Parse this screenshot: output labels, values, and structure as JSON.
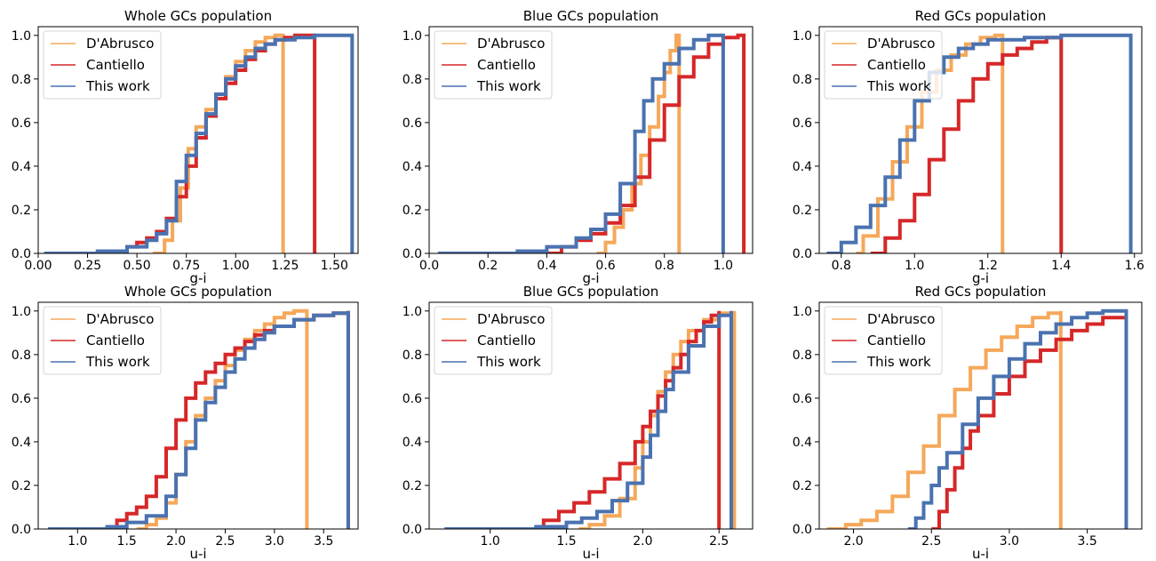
{
  "colors": {
    "dabrusco": "#f5a85a",
    "cantiello": "#d62728",
    "this_work": "#4a72b0"
  },
  "chart_data": [
    {
      "type": "line",
      "title": "Whole GCs population",
      "xlabel": "g-i",
      "ylabel": "",
      "xlim": [
        0.0,
        1.62
      ],
      "ylim": [
        0.0,
        1.04
      ],
      "xticks": [
        0.0,
        0.25,
        0.5,
        0.75,
        1.0,
        1.25,
        1.5
      ],
      "xtick_labels": [
        "0.00",
        "0.25",
        "0.50",
        "0.75",
        "1.00",
        "1.25",
        "1.50"
      ],
      "yticks": [
        0.0,
        0.2,
        0.4,
        0.6,
        0.8,
        1.0
      ],
      "ytick_labels": [
        "0.0",
        "0.2",
        "0.4",
        "0.6",
        "0.8",
        "1.0"
      ],
      "legend": {
        "position": "top-left",
        "entries": [
          "D'Abrusco",
          "Cantiello",
          "This work"
        ]
      },
      "grid": false,
      "series": [
        {
          "name": "D'Abrusco",
          "color": "#f5a85a",
          "line_width": 4,
          "x": [
            0.58,
            0.64,
            0.68,
            0.72,
            0.76,
            0.8,
            0.85,
            0.9,
            0.95,
            1.0,
            1.05,
            1.1,
            1.15,
            1.2,
            1.24
          ],
          "y": [
            0.0,
            0.06,
            0.15,
            0.3,
            0.48,
            0.58,
            0.66,
            0.73,
            0.81,
            0.88,
            0.93,
            0.97,
            0.99,
            1.0,
            1.0
          ]
        },
        {
          "name": "Cantiello",
          "color": "#d62728",
          "line_width": 4,
          "x": [
            0.38,
            0.45,
            0.5,
            0.55,
            0.6,
            0.65,
            0.7,
            0.75,
            0.8,
            0.85,
            0.9,
            0.95,
            1.0,
            1.05,
            1.1,
            1.15,
            1.2,
            1.25,
            1.3,
            1.35,
            1.4
          ],
          "y": [
            0.0,
            0.03,
            0.05,
            0.07,
            0.1,
            0.16,
            0.26,
            0.4,
            0.53,
            0.63,
            0.71,
            0.78,
            0.84,
            0.89,
            0.93,
            0.96,
            0.98,
            0.99,
            1.0,
            1.0,
            1.0
          ]
        },
        {
          "name": "This work",
          "color": "#4a72b0",
          "line_width": 4,
          "x": [
            0.03,
            0.3,
            0.45,
            0.55,
            0.6,
            0.65,
            0.7,
            0.75,
            0.8,
            0.85,
            0.9,
            0.95,
            1.0,
            1.05,
            1.1,
            1.15,
            1.2,
            1.3,
            1.4,
            1.5,
            1.59
          ],
          "y": [
            0.0,
            0.01,
            0.03,
            0.06,
            0.09,
            0.15,
            0.33,
            0.45,
            0.55,
            0.64,
            0.73,
            0.8,
            0.86,
            0.9,
            0.94,
            0.96,
            0.98,
            0.99,
            1.0,
            1.0,
            1.0
          ]
        }
      ]
    },
    {
      "type": "line",
      "title": "Blue GCs population",
      "xlabel": "g-i",
      "ylabel": "",
      "xlim": [
        0.0,
        1.1
      ],
      "ylim": [
        0.0,
        1.04
      ],
      "xticks": [
        0.0,
        0.2,
        0.4,
        0.6,
        0.8,
        1.0
      ],
      "xtick_labels": [
        "0.0",
        "0.2",
        "0.4",
        "0.6",
        "0.8",
        "1.0"
      ],
      "yticks": [
        0.0,
        0.2,
        0.4,
        0.6,
        0.8,
        1.0
      ],
      "ytick_labels": [
        "0.0",
        "0.2",
        "0.4",
        "0.6",
        "0.8",
        "1.0"
      ],
      "legend": {
        "position": "top-left",
        "entries": [
          "D'Abrusco",
          "Cantiello",
          "This work"
        ]
      },
      "grid": false,
      "series": [
        {
          "name": "D'Abrusco",
          "color": "#f5a85a",
          "line_width": 4,
          "x": [
            0.57,
            0.6,
            0.63,
            0.66,
            0.69,
            0.72,
            0.75,
            0.78,
            0.8,
            0.82,
            0.84,
            0.85
          ],
          "y": [
            0.0,
            0.05,
            0.12,
            0.2,
            0.32,
            0.45,
            0.58,
            0.72,
            0.83,
            0.93,
            1.0,
            1.0
          ]
        },
        {
          "name": "Cantiello",
          "color": "#d62728",
          "line_width": 4,
          "x": [
            0.4,
            0.45,
            0.5,
            0.55,
            0.6,
            0.65,
            0.7,
            0.75,
            0.8,
            0.85,
            0.9,
            0.95,
            1.0,
            1.05,
            1.07
          ],
          "y": [
            0.0,
            0.03,
            0.06,
            0.09,
            0.14,
            0.22,
            0.35,
            0.52,
            0.68,
            0.81,
            0.9,
            0.96,
            0.99,
            1.0,
            1.0
          ]
        },
        {
          "name": "This work",
          "color": "#4a72b0",
          "line_width": 4,
          "x": [
            0.03,
            0.3,
            0.4,
            0.5,
            0.55,
            0.6,
            0.65,
            0.7,
            0.73,
            0.76,
            0.8,
            0.85,
            0.9,
            0.95,
            1.0
          ],
          "y": [
            0.0,
            0.01,
            0.03,
            0.07,
            0.11,
            0.18,
            0.32,
            0.56,
            0.7,
            0.8,
            0.87,
            0.94,
            0.98,
            1.0,
            1.0
          ]
        }
      ]
    },
    {
      "type": "line",
      "title": "Red GCs population",
      "xlabel": "g-i",
      "ylabel": "",
      "xlim": [
        0.74,
        1.62
      ],
      "ylim": [
        0.0,
        1.04
      ],
      "xticks": [
        0.8,
        1.0,
        1.2,
        1.4,
        1.6
      ],
      "xtick_labels": [
        "0.8",
        "1.0",
        "1.2",
        "1.4",
        "1.6"
      ],
      "yticks": [
        0.0,
        0.2,
        0.4,
        0.6,
        0.8,
        1.0
      ],
      "ytick_labels": [
        "0.0",
        "0.2",
        "0.4",
        "0.6",
        "0.8",
        "1.0"
      ],
      "legend": {
        "position": "top-left",
        "entries": [
          "D'Abrusco",
          "Cantiello",
          "This work"
        ]
      },
      "grid": false,
      "series": [
        {
          "name": "D'Abrusco",
          "color": "#f5a85a",
          "line_width": 4,
          "x": [
            0.84,
            0.86,
            0.9,
            0.94,
            0.98,
            1.02,
            1.06,
            1.1,
            1.14,
            1.18,
            1.22,
            1.24
          ],
          "y": [
            0.0,
            0.08,
            0.25,
            0.42,
            0.58,
            0.74,
            0.84,
            0.91,
            0.96,
            0.99,
            1.0,
            1.0
          ]
        },
        {
          "name": "Cantiello",
          "color": "#d62728",
          "line_width": 4,
          "x": [
            0.88,
            0.92,
            0.96,
            1.0,
            1.04,
            1.08,
            1.12,
            1.16,
            1.2,
            1.24,
            1.28,
            1.32,
            1.36,
            1.4
          ],
          "y": [
            0.0,
            0.07,
            0.15,
            0.27,
            0.43,
            0.57,
            0.7,
            0.8,
            0.87,
            0.91,
            0.94,
            0.97,
            0.99,
            1.0
          ]
        },
        {
          "name": "This work",
          "color": "#4a72b0",
          "line_width": 4,
          "x": [
            0.76,
            0.8,
            0.84,
            0.88,
            0.92,
            0.96,
            1.0,
            1.04,
            1.08,
            1.12,
            1.16,
            1.2,
            1.3,
            1.4,
            1.5,
            1.59
          ],
          "y": [
            0.0,
            0.05,
            0.12,
            0.22,
            0.35,
            0.52,
            0.7,
            0.83,
            0.9,
            0.94,
            0.96,
            0.98,
            0.99,
            1.0,
            1.0,
            1.0
          ]
        }
      ]
    },
    {
      "type": "line",
      "title": "Whole GCs population",
      "xlabel": "u-i",
      "ylabel": "",
      "xlim": [
        0.6,
        3.85
      ],
      "ylim": [
        0.0,
        1.04
      ],
      "xticks": [
        1.0,
        1.5,
        2.0,
        2.5,
        3.0,
        3.5
      ],
      "xtick_labels": [
        "1.0",
        "1.5",
        "2.0",
        "2.5",
        "3.0",
        "3.5"
      ],
      "yticks": [
        0.0,
        0.2,
        0.4,
        0.6,
        0.8,
        1.0
      ],
      "ytick_labels": [
        "0.0",
        "0.2",
        "0.4",
        "0.6",
        "0.8",
        "1.0"
      ],
      "legend": {
        "position": "top-left",
        "entries": [
          "D'Abrusco",
          "Cantiello",
          "This work"
        ]
      },
      "grid": false,
      "series": [
        {
          "name": "D'Abrusco",
          "color": "#f5a85a",
          "line_width": 4,
          "x": [
            1.6,
            1.7,
            1.8,
            1.9,
            2.0,
            2.1,
            2.2,
            2.3,
            2.4,
            2.5,
            2.6,
            2.7,
            2.8,
            2.9,
            3.0,
            3.1,
            3.2,
            3.3,
            3.33
          ],
          "y": [
            0.0,
            0.02,
            0.05,
            0.12,
            0.25,
            0.4,
            0.52,
            0.6,
            0.68,
            0.75,
            0.82,
            0.87,
            0.91,
            0.94,
            0.97,
            0.99,
            1.0,
            1.0,
            1.0
          ]
        },
        {
          "name": "Cantiello",
          "color": "#d62728",
          "line_width": 4,
          "x": [
            1.25,
            1.4,
            1.5,
            1.6,
            1.7,
            1.8,
            1.9,
            2.0,
            2.1,
            2.2,
            2.3,
            2.4,
            2.5,
            2.6,
            2.7,
            2.8,
            2.9,
            3.0,
            3.2,
            3.4,
            3.6,
            3.75
          ],
          "y": [
            0.0,
            0.04,
            0.07,
            0.1,
            0.15,
            0.24,
            0.37,
            0.5,
            0.6,
            0.67,
            0.72,
            0.76,
            0.8,
            0.83,
            0.86,
            0.89,
            0.91,
            0.93,
            0.96,
            0.98,
            0.99,
            1.0
          ]
        },
        {
          "name": "This work",
          "color": "#4a72b0",
          "line_width": 4,
          "x": [
            0.7,
            1.0,
            1.3,
            1.5,
            1.7,
            1.9,
            2.0,
            2.1,
            2.2,
            2.3,
            2.4,
            2.5,
            2.6,
            2.7,
            2.8,
            2.9,
            3.0,
            3.2,
            3.4,
            3.6,
            3.75
          ],
          "y": [
            0.0,
            0.0,
            0.01,
            0.03,
            0.06,
            0.15,
            0.25,
            0.37,
            0.5,
            0.58,
            0.65,
            0.72,
            0.78,
            0.83,
            0.87,
            0.9,
            0.93,
            0.96,
            0.98,
            0.99,
            1.0
          ]
        }
      ]
    },
    {
      "type": "line",
      "title": "Blue GCs population",
      "xlabel": "u-i",
      "ylabel": "",
      "xlim": [
        0.6,
        2.72
      ],
      "ylim": [
        0.0,
        1.04
      ],
      "xticks": [
        1.0,
        1.5,
        2.0,
        2.5
      ],
      "xtick_labels": [
        "1.0",
        "1.5",
        "2.0",
        "2.5"
      ],
      "yticks": [
        0.0,
        0.2,
        0.4,
        0.6,
        0.8,
        1.0
      ],
      "ytick_labels": [
        "0.0",
        "0.2",
        "0.4",
        "0.6",
        "0.8",
        "1.0"
      ],
      "legend": {
        "position": "top-left",
        "entries": [
          "D'Abrusco",
          "Cantiello",
          "This work"
        ]
      },
      "grid": false,
      "series": [
        {
          "name": "D'Abrusco",
          "color": "#f5a85a",
          "line_width": 4,
          "x": [
            1.58,
            1.65,
            1.75,
            1.85,
            1.95,
            2.0,
            2.05,
            2.1,
            2.15,
            2.2,
            2.25,
            2.3,
            2.4,
            2.5,
            2.6
          ],
          "y": [
            0.0,
            0.02,
            0.06,
            0.14,
            0.28,
            0.4,
            0.52,
            0.63,
            0.72,
            0.8,
            0.86,
            0.91,
            0.96,
            0.99,
            1.0
          ]
        },
        {
          "name": "Cantiello",
          "color": "#d62728",
          "line_width": 4,
          "x": [
            1.25,
            1.35,
            1.45,
            1.55,
            1.65,
            1.75,
            1.85,
            1.95,
            2.0,
            2.05,
            2.1,
            2.15,
            2.2,
            2.25,
            2.3,
            2.35,
            2.4,
            2.45,
            2.5
          ],
          "y": [
            0.0,
            0.04,
            0.08,
            0.12,
            0.17,
            0.23,
            0.3,
            0.4,
            0.47,
            0.54,
            0.61,
            0.68,
            0.74,
            0.8,
            0.86,
            0.91,
            0.95,
            0.98,
            1.0
          ]
        },
        {
          "name": "This work",
          "color": "#4a72b0",
          "line_width": 4,
          "x": [
            0.7,
            1.0,
            1.3,
            1.5,
            1.6,
            1.7,
            1.8,
            1.9,
            2.0,
            2.05,
            2.1,
            2.15,
            2.2,
            2.3,
            2.4,
            2.5,
            2.58
          ],
          "y": [
            0.0,
            0.0,
            0.01,
            0.03,
            0.05,
            0.08,
            0.13,
            0.21,
            0.33,
            0.43,
            0.54,
            0.64,
            0.72,
            0.84,
            0.93,
            0.98,
            1.0
          ]
        }
      ]
    },
    {
      "type": "line",
      "title": "Red GCs population",
      "xlabel": "u-i",
      "ylabel": "",
      "xlim": [
        1.78,
        3.85
      ],
      "ylim": [
        0.0,
        1.04
      ],
      "xticks": [
        2.0,
        2.5,
        3.0,
        3.5
      ],
      "xtick_labels": [
        "2.0",
        "2.5",
        "3.0",
        "3.5"
      ],
      "yticks": [
        0.0,
        0.2,
        0.4,
        0.6,
        0.8,
        1.0
      ],
      "ytick_labels": [
        "0.0",
        "0.2",
        "0.4",
        "0.6",
        "0.8",
        "1.0"
      ],
      "legend": {
        "position": "top-left",
        "entries": [
          "D'Abrusco",
          "Cantiello",
          "This work"
        ]
      },
      "grid": false,
      "series": [
        {
          "name": "D'Abrusco",
          "color": "#f5a85a",
          "line_width": 4,
          "x": [
            1.83,
            1.95,
            2.05,
            2.15,
            2.25,
            2.35,
            2.45,
            2.55,
            2.65,
            2.75,
            2.85,
            2.95,
            3.05,
            3.15,
            3.25,
            3.33
          ],
          "y": [
            0.0,
            0.02,
            0.04,
            0.08,
            0.15,
            0.26,
            0.38,
            0.52,
            0.64,
            0.74,
            0.82,
            0.88,
            0.93,
            0.97,
            0.99,
            1.0
          ]
        },
        {
          "name": "Cantiello",
          "color": "#d62728",
          "line_width": 4,
          "x": [
            2.5,
            2.55,
            2.6,
            2.65,
            2.7,
            2.75,
            2.8,
            2.9,
            3.0,
            3.1,
            3.2,
            3.3,
            3.4,
            3.5,
            3.6,
            3.75
          ],
          "y": [
            0.0,
            0.08,
            0.18,
            0.28,
            0.37,
            0.45,
            0.52,
            0.62,
            0.7,
            0.77,
            0.82,
            0.87,
            0.91,
            0.94,
            0.97,
            1.0
          ]
        },
        {
          "name": "This work",
          "color": "#4a72b0",
          "line_width": 4,
          "x": [
            2.35,
            2.4,
            2.45,
            2.5,
            2.55,
            2.6,
            2.7,
            2.8,
            2.9,
            3.0,
            3.1,
            3.2,
            3.3,
            3.4,
            3.5,
            3.6,
            3.75
          ],
          "y": [
            0.0,
            0.05,
            0.12,
            0.2,
            0.28,
            0.35,
            0.48,
            0.6,
            0.7,
            0.78,
            0.85,
            0.9,
            0.94,
            0.97,
            0.99,
            1.0,
            1.0
          ]
        }
      ]
    }
  ]
}
